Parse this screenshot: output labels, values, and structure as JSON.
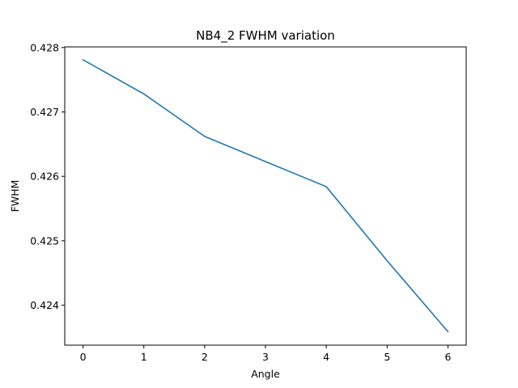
{
  "chart_data": {
    "type": "line",
    "title": "NB4_2 FWHM variation",
    "xlabel": "Angle",
    "ylabel": "FWHM",
    "x": [
      0,
      1,
      2,
      3,
      4,
      5,
      6
    ],
    "series": [
      {
        "values": [
          0.42781,
          0.42728,
          0.42662,
          0.42623,
          0.42584,
          0.42469,
          0.42359
        ],
        "color": "#1f77b4"
      }
    ],
    "xlim": [
      -0.3,
      6.3
    ],
    "ylim": [
      0.42338,
      0.42801
    ],
    "xticks": [
      0,
      1,
      2,
      3,
      4,
      5,
      6
    ],
    "xtick_labels": [
      "0",
      "1",
      "2",
      "3",
      "4",
      "5",
      "6"
    ],
    "yticks": [
      0.424,
      0.425,
      0.426,
      0.427,
      0.428
    ],
    "ytick_labels": [
      "0.424",
      "0.425",
      "0.426",
      "0.427",
      "0.428"
    ],
    "grid": false,
    "legend": "none"
  }
}
